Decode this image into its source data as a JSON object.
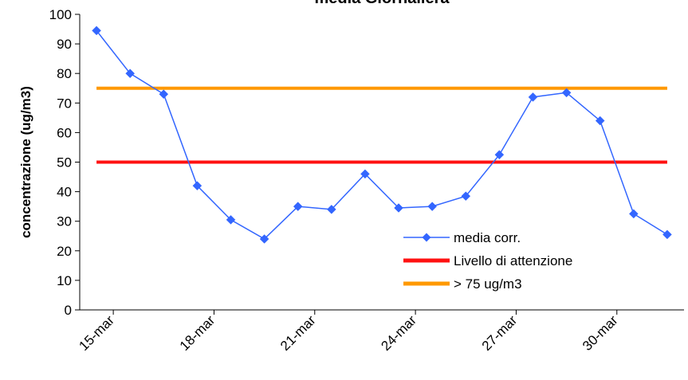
{
  "chart_data": {
    "type": "line",
    "title": "media Giornaliera",
    "xlabel": "",
    "ylabel": "concentrazione (ug/m3)",
    "ylim": [
      0,
      100
    ],
    "yticks": [
      0,
      10,
      20,
      30,
      40,
      50,
      60,
      70,
      80,
      90,
      100
    ],
    "x": [
      "15-mar",
      "16-mar",
      "17-mar",
      "18-mar",
      "19-mar",
      "20-mar",
      "21-mar",
      "22-mar",
      "23-mar",
      "24-mar",
      "25-mar",
      "26-mar",
      "27-mar",
      "28-mar",
      "29-mar",
      "30-mar",
      "31-mar",
      "01-apr"
    ],
    "xticks": [
      "15-mar",
      "18-mar",
      "21-mar",
      "24-mar",
      "27-mar",
      "30-mar"
    ],
    "series": [
      {
        "name": "media corr.",
        "color": "#3366ff",
        "values": [
          94.5,
          80,
          73,
          42,
          30.5,
          24,
          35,
          34,
          46,
          34.5,
          35,
          38.5,
          52.5,
          72,
          73.5,
          64,
          32.5,
          25.5
        ]
      },
      {
        "name": "Livello di attenzione",
        "color": "#ff1111",
        "values": [
          50,
          50,
          50,
          50,
          50,
          50,
          50,
          50,
          50,
          50,
          50,
          50,
          50,
          50,
          50,
          50,
          50,
          50
        ]
      },
      {
        "name": "> 75 ug/m3",
        "color": "#ff9900",
        "values": [
          75,
          75,
          75,
          75,
          75,
          75,
          75,
          75,
          75,
          75,
          75,
          75,
          75,
          75,
          75,
          75,
          75,
          75
        ]
      }
    ],
    "grid": false,
    "legend_position": "bottom-right"
  }
}
